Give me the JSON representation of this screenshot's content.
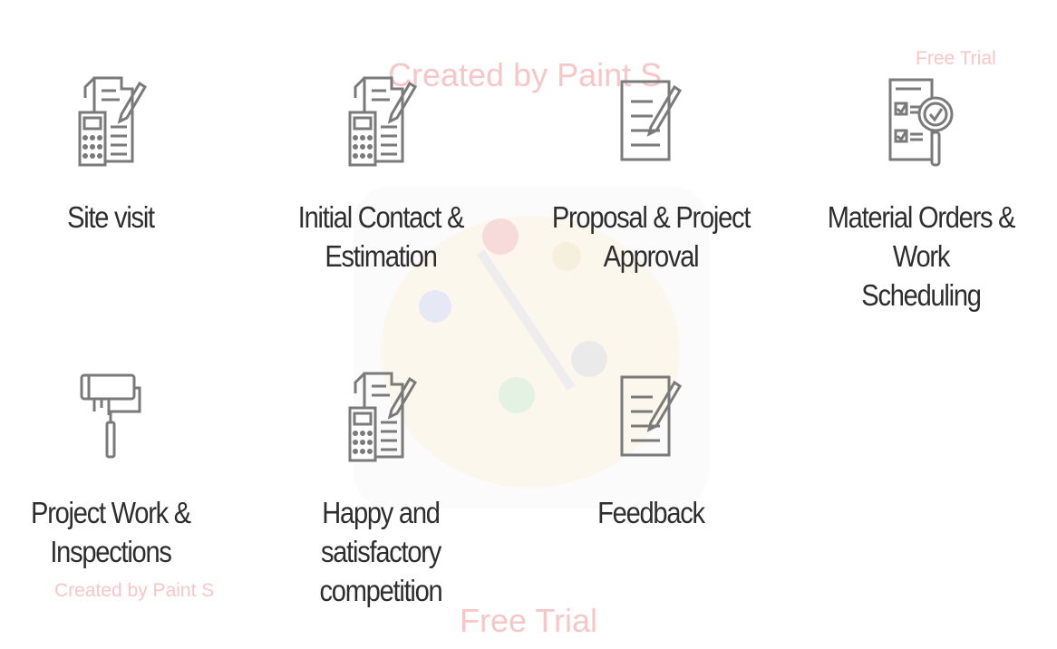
{
  "watermarks": {
    "top": "Created by Paint S",
    "trial_top": "Free Trial",
    "bottom_left": "Created by Paint S",
    "trial_bottom": "Free Trial"
  },
  "steps": [
    {
      "label_line1": "Site visit",
      "label_line2": "",
      "icon": "estimate-calculator-document-icon"
    },
    {
      "label_line1": "Initial Contact &",
      "label_line2": "Estimation",
      "icon": "estimate-calculator-document-icon"
    },
    {
      "label_line1": "Proposal & Project",
      "label_line2": "Approval",
      "icon": "document-pen-icon"
    },
    {
      "label_line1": "Material Orders & Work",
      "label_line2": "Scheduling",
      "icon": "checklist-magnifier-icon"
    },
    {
      "label_line1": "Project Work &",
      "label_line2": "Inspections",
      "icon": "paint-roller-icon"
    },
    {
      "label_line1": "Happy and satisfactory",
      "label_line2": "competition",
      "icon": "estimate-calculator-document-icon"
    },
    {
      "label_line1": "Feedback",
      "label_line2": "",
      "icon": "document-pen-icon"
    }
  ],
  "colors": {
    "icon_stroke": "#7a7a7a",
    "label_text": "#2e2e2e",
    "watermark_text": "#f7c6c6"
  }
}
